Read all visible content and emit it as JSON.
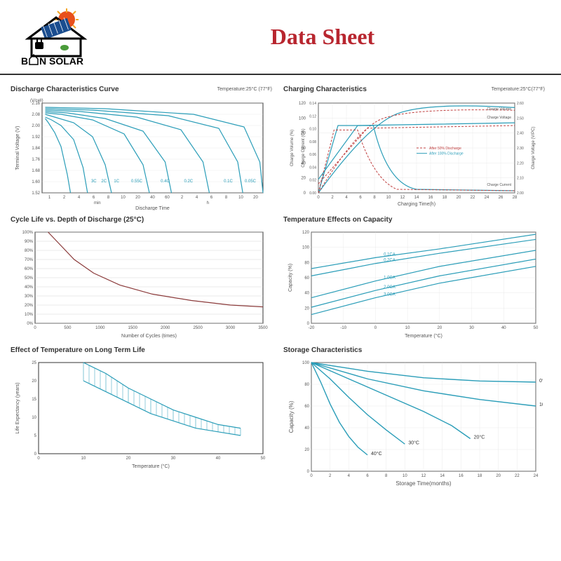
{
  "brand": "BAN SOLAR",
  "page_title": "Data Sheet",
  "colors": {
    "title": "#b8262f",
    "curve_cyan": "#2a9db8",
    "curve_red": "#c04040",
    "curve_maroon": "#8b3a3a",
    "grid": "#cccccc",
    "axis": "#333333",
    "text": "#555555",
    "logo_red": "#e8501c",
    "logo_yellow": "#f5a623",
    "logo_blue": "#1a4d8f",
    "logo_black": "#000000",
    "logo_green": "#4a9b3a"
  },
  "charts": [
    {
      "id": "discharge",
      "title": "Discharge Characteristics Curve",
      "subtitle": "Temperature:25°C (77°F)",
      "ylabel": "Terminal Voltage (V)",
      "ylabel2": "(V/cell)",
      "xlabel": "Discharge Time",
      "ylim": [
        1.52,
        2.16
      ],
      "yticks": [
        "1.52",
        "1.60",
        "1.68",
        "1.76",
        "1.84",
        "1.92",
        "2.00",
        "2.08",
        "2.16"
      ],
      "xticks_min": [
        "1",
        "2",
        "4",
        "6",
        "8",
        "10",
        "20",
        "40",
        "60"
      ],
      "xticks_h": [
        "2",
        "4",
        "6",
        "8",
        "10",
        "20"
      ],
      "x_unit_labels": [
        "min",
        "h"
      ],
      "series": [
        {
          "label": "3C",
          "points": [
            [
              5,
              2.05
            ],
            [
              10,
              2.02
            ],
            [
              20,
              1.95
            ],
            [
              30,
              1.85
            ],
            [
              40,
              1.65
            ],
            [
              45,
              1.52
            ]
          ]
        },
        {
          "label": "2C",
          "points": [
            [
              5,
              2.06
            ],
            [
              15,
              2.04
            ],
            [
              30,
              2.0
            ],
            [
              50,
              1.9
            ],
            [
              65,
              1.7
            ],
            [
              72,
              1.52
            ]
          ]
        },
        {
          "label": "1C",
          "points": [
            [
              5,
              2.08
            ],
            [
              20,
              2.06
            ],
            [
              50,
              2.02
            ],
            [
              80,
              1.92
            ],
            [
              100,
              1.72
            ],
            [
              110,
              1.52
            ]
          ]
        },
        {
          "label": "0.55C",
          "points": [
            [
              5,
              2.09
            ],
            [
              30,
              2.08
            ],
            [
              80,
              2.04
            ],
            [
              130,
              1.94
            ],
            [
              160,
              1.72
            ],
            [
              170,
              1.52
            ]
          ]
        },
        {
          "label": "0.4C",
          "points": [
            [
              5,
              2.1
            ],
            [
              40,
              2.09
            ],
            [
              100,
              2.05
            ],
            [
              160,
              1.96
            ],
            [
              195,
              1.74
            ],
            [
              205,
              1.52
            ]
          ]
        },
        {
          "label": "0.2C",
          "points": [
            [
              5,
              2.11
            ],
            [
              60,
              2.1
            ],
            [
              150,
              2.06
            ],
            [
              220,
              1.97
            ],
            [
              255,
              1.74
            ],
            [
              265,
              1.52
            ]
          ]
        },
        {
          "label": "0.1C",
          "points": [
            [
              5,
              2.12
            ],
            [
              80,
              2.11
            ],
            [
              200,
              2.07
            ],
            [
              280,
              1.98
            ],
            [
              310,
              1.74
            ],
            [
              318,
              1.52
            ]
          ]
        },
        {
          "label": "0.05C",
          "points": [
            [
              5,
              2.13
            ],
            [
              100,
              2.12
            ],
            [
              240,
              2.08
            ],
            [
              320,
              1.99
            ],
            [
              345,
              1.74
            ],
            [
              350,
              1.52
            ]
          ]
        }
      ]
    },
    {
      "id": "charging",
      "title": "Charging Characteristics",
      "subtitle": "Temperature:25°C(77°F)",
      "ylabel": "Charge Volume (%)",
      "ylabel2": "Charge Current (CA)",
      "ylabel3": "Charge Voltage (V/PC)",
      "xlabel": "Charging Time(h)",
      "xlim": [
        0,
        28
      ],
      "ylim_vol": [
        0,
        120
      ],
      "ylim_cur": [
        0,
        0.14
      ],
      "ylim_volt": [
        2.0,
        2.6
      ],
      "xticks": [
        "0",
        "2",
        "4",
        "6",
        "8",
        "10",
        "12",
        "14",
        "16",
        "18",
        "20",
        "22",
        "24",
        "26",
        "28"
      ],
      "yticks_vol": [
        "0",
        "20",
        "40",
        "60",
        "80",
        "100",
        "120"
      ],
      "yticks_cur": [
        "0.00",
        "0.02",
        "0.04",
        "0.06",
        "0.08",
        "0.10",
        "0.12",
        "0.14"
      ],
      "yticks_volt": [
        "2.00",
        "2.10",
        "2.20",
        "2.30",
        "2.40",
        "2.50",
        "2.60"
      ],
      "legend": [
        "After 50% Discharge",
        "After 100% Discharge"
      ],
      "annotations": [
        "Charge Volume",
        "Charge Voltage",
        "Charge Current"
      ]
    },
    {
      "id": "cycle_life",
      "title": "Cycle Life vs. Depth of Discharge (25°C)",
      "ylabel": "",
      "xlabel": "Number of Cycles (times)",
      "xlim": [
        0,
        3500
      ],
      "ylim": [
        0,
        100
      ],
      "xticks": [
        "0",
        "500",
        "1000",
        "1500",
        "2000",
        "2500",
        "3000",
        "3500"
      ],
      "yticks": [
        "0%",
        "10%",
        "20%",
        "30%",
        "40%",
        "50%",
        "60%",
        "70%",
        "80%",
        "90%",
        "100%"
      ],
      "curve": [
        [
          200,
          100
        ],
        [
          400,
          85
        ],
        [
          600,
          70
        ],
        [
          900,
          55
        ],
        [
          1300,
          42
        ],
        [
          1800,
          32
        ],
        [
          2400,
          25
        ],
        [
          3000,
          20
        ],
        [
          3500,
          18
        ]
      ]
    },
    {
      "id": "temp_capacity",
      "title": "Temperature Effects on Capacity",
      "ylabel": "Capacity (%)",
      "xlabel": "Temperature (°C)",
      "xlim": [
        -20,
        50
      ],
      "ylim": [
        0,
        125
      ],
      "xticks": [
        "-20",
        "-10",
        "0",
        "10",
        "20",
        "30",
        "40",
        "50"
      ],
      "yticks": [
        "0",
        "20",
        "40",
        "60",
        "80",
        "100",
        "120"
      ],
      "series": [
        {
          "label": "0.1CA",
          "points": [
            [
              -20,
              75
            ],
            [
              0,
              90
            ],
            [
              20,
              102
            ],
            [
              50,
              122
            ]
          ]
        },
        {
          "label": "0.2CA",
          "points": [
            [
              -20,
              65
            ],
            [
              0,
              82
            ],
            [
              20,
              96
            ],
            [
              50,
              115
            ]
          ]
        },
        {
          "label": "1.0CA",
          "points": [
            [
              -20,
              35
            ],
            [
              0,
              58
            ],
            [
              20,
              78
            ],
            [
              50,
              100
            ]
          ]
        },
        {
          "label": "2.0CA",
          "points": [
            [
              -20,
              22
            ],
            [
              0,
              45
            ],
            [
              20,
              65
            ],
            [
              50,
              88
            ]
          ]
        },
        {
          "label": "3.0CA",
          "points": [
            [
              -20,
              12
            ],
            [
              0,
              35
            ],
            [
              20,
              55
            ],
            [
              50,
              78
            ]
          ]
        }
      ]
    },
    {
      "id": "temp_life",
      "title": "Effect of Temperature on Long Term Life",
      "ylabel": "Life Expectancy (years)",
      "xlabel": "Temperature (°C)",
      "xlim": [
        0,
        50
      ],
      "ylim": [
        0,
        25
      ],
      "xticks": [
        "0",
        "10",
        "20",
        "30",
        "40",
        "50"
      ],
      "yticks": [
        "0",
        "5",
        "10",
        "15",
        "20",
        "25"
      ],
      "band_upper": [
        [
          10,
          25
        ],
        [
          15,
          22
        ],
        [
          20,
          18
        ],
        [
          25,
          15
        ],
        [
          30,
          12
        ],
        [
          35,
          10
        ],
        [
          40,
          8
        ],
        [
          45,
          7
        ]
      ],
      "band_lower": [
        [
          10,
          20
        ],
        [
          15,
          17
        ],
        [
          20,
          14
        ],
        [
          25,
          11
        ],
        [
          30,
          9
        ],
        [
          35,
          7
        ],
        [
          40,
          6
        ],
        [
          45,
          5
        ]
      ]
    },
    {
      "id": "storage",
      "title": "Storage Characteristics",
      "ylabel": "Capacity (%)",
      "xlabel": "Storage Time(months)",
      "xlim": [
        0,
        24
      ],
      "ylim": [
        0,
        100
      ],
      "xticks": [
        "0",
        "2",
        "4",
        "6",
        "8",
        "10",
        "12",
        "14",
        "16",
        "18",
        "20",
        "22",
        "24"
      ],
      "yticks": [
        "0",
        "20",
        "40",
        "60",
        "80",
        "100"
      ],
      "series": [
        {
          "label": "0°C",
          "points": [
            [
              0,
              100
            ],
            [
              6,
              92
            ],
            [
              12,
              86
            ],
            [
              18,
              83
            ],
            [
              24,
              82
            ]
          ]
        },
        {
          "label": "10°C",
          "points": [
            [
              0,
              100
            ],
            [
              6,
              85
            ],
            [
              12,
              74
            ],
            [
              18,
              66
            ],
            [
              24,
              60
            ]
          ]
        },
        {
          "label": "20°C",
          "points": [
            [
              0,
              100
            ],
            [
              4,
              85
            ],
            [
              8,
              70
            ],
            [
              12,
              55
            ],
            [
              15,
              42
            ],
            [
              17,
              30
            ]
          ]
        },
        {
          "label": "30°C",
          "points": [
            [
              0,
              100
            ],
            [
              2,
              85
            ],
            [
              4,
              68
            ],
            [
              6,
              52
            ],
            [
              8,
              38
            ],
            [
              10,
              25
            ]
          ]
        },
        {
          "label": "40°C",
          "points": [
            [
              0,
              100
            ],
            [
              1,
              82
            ],
            [
              2,
              62
            ],
            [
              3,
              45
            ],
            [
              4,
              32
            ],
            [
              5,
              22
            ],
            [
              6,
              15
            ]
          ]
        }
      ]
    }
  ]
}
